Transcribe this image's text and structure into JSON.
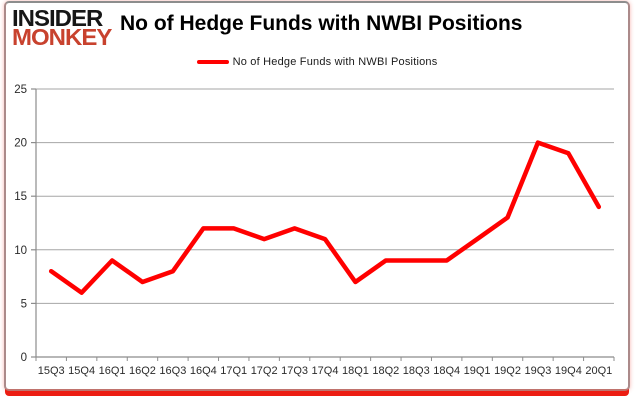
{
  "header": {
    "logo_line1": "INSIDER",
    "logo_line2": "MONKEY",
    "title": "No of Hedge Funds with NWBI Positions"
  },
  "legend": {
    "label": "No of Hedge Funds with NWBI Positions"
  },
  "chart_data": {
    "type": "line",
    "title": "No of Hedge Funds with NWBI Positions",
    "categories": [
      "15Q3",
      "15Q4",
      "16Q1",
      "16Q2",
      "16Q3",
      "16Q4",
      "17Q1",
      "17Q2",
      "17Q3",
      "17Q4",
      "18Q1",
      "18Q2",
      "18Q3",
      "18Q4",
      "19Q1",
      "19Q2",
      "19Q3",
      "19Q4",
      "20Q1"
    ],
    "series": [
      {
        "name": "No of Hedge Funds with NWBI Positions",
        "values": [
          8,
          6,
          9,
          7,
          8,
          12,
          12,
          11,
          12,
          11,
          7,
          9,
          9,
          9,
          11,
          13,
          20,
          19,
          14
        ],
        "color": "#ff0000"
      }
    ],
    "xlabel": "",
    "ylabel": "",
    "ylim": [
      0,
      25
    ],
    "yticks": [
      0,
      5,
      10,
      15,
      20,
      25
    ],
    "grid": true,
    "legend_position": "top-center"
  },
  "colors": {
    "line": "#ff0000",
    "logo_black": "#161616",
    "logo_red": "#c8422e",
    "frame_red": "#ec1d12",
    "grid": "#a6a6a6",
    "axis": "#8c8c8c",
    "tick_label": "#2b2b2b"
  }
}
